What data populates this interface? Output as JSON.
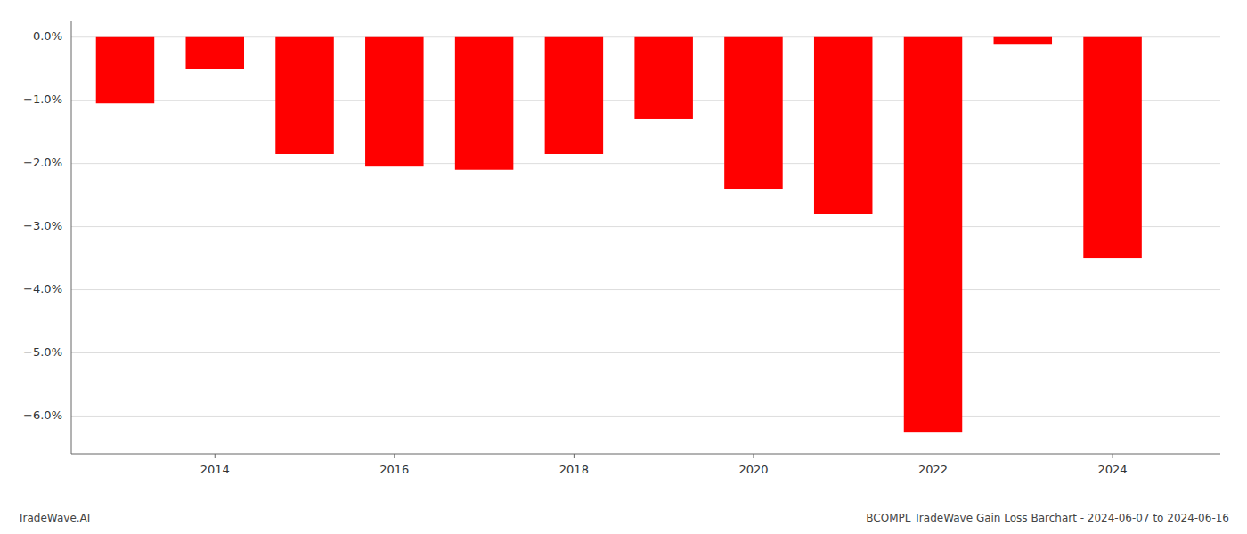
{
  "chart_data": {
    "type": "bar",
    "title": "BCOMPL TradeWave Gain Loss Barchart - 2024-06-07 to 2024-06-16",
    "annotations": [
      "TradeWave.AI"
    ],
    "x": [
      2013,
      2014,
      2015,
      2016,
      2017,
      2018,
      2019,
      2020,
      2021,
      2022,
      2023,
      2024
    ],
    "values": [
      -1.05,
      -0.5,
      -1.85,
      -2.05,
      -2.1,
      -1.85,
      -1.3,
      -2.4,
      -2.8,
      -6.25,
      -0.12,
      -3.5
    ],
    "color": "#ff0000",
    "xlim": [
      2012.4,
      2025.2
    ],
    "xticks": [
      2014,
      2016,
      2018,
      2020,
      2022,
      2024
    ],
    "ylim": [
      -6.6,
      0.25
    ],
    "yticks": [
      {
        "value": 0.0,
        "label": "0.0%"
      },
      {
        "value": -1.0,
        "label": "−1.0%"
      },
      {
        "value": -2.0,
        "label": "−2.0%"
      },
      {
        "value": -3.0,
        "label": "−3.0%"
      },
      {
        "value": -4.0,
        "label": "−4.0%"
      },
      {
        "value": -5.0,
        "label": "−5.0%"
      },
      {
        "value": -6.0,
        "label": "−6.0%"
      }
    ],
    "grid": true
  }
}
